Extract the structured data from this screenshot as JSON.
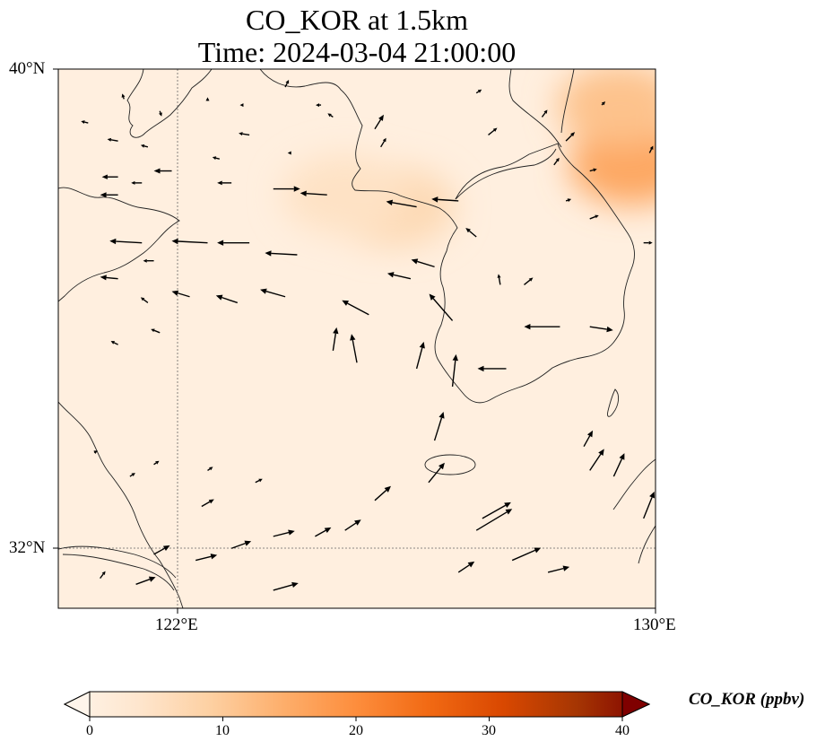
{
  "title_line1": "CO_KOR at 1.5km",
  "title_line2": "Time: 2024-03-04 21:00:00",
  "axes": {
    "lat_ticks": [
      {
        "label": "40°N",
        "value": 40
      },
      {
        "label": "32°N",
        "value": 32
      }
    ],
    "lon_ticks": [
      {
        "label": "122°E",
        "value": 122
      },
      {
        "label": "130°E",
        "value": 130
      }
    ],
    "lon_range": [
      120,
      130
    ],
    "lat_range": [
      31,
      40
    ],
    "gridlines": "dotted at 122°E and 32°N"
  },
  "colorbar": {
    "label": "CO_KOR (ppbv)",
    "min": 0,
    "max": 40,
    "extend": "both",
    "colormap": [
      "#fff5eb",
      "#fee6ce",
      "#fdd0a2",
      "#fdae6b",
      "#fd8d3c",
      "#f16913",
      "#d94801",
      "#a63603",
      "#7f0000"
    ],
    "ticks": [
      {
        "label": "0",
        "value": 0
      },
      {
        "label": "10",
        "value": 10
      },
      {
        "label": "20",
        "value": 20
      },
      {
        "label": "30",
        "value": 30
      },
      {
        "label": "40",
        "value": 40
      }
    ]
  },
  "field": {
    "background_ppbv": 2,
    "hotspots": [
      {
        "lon": 125.6,
        "lat": 37.7,
        "ppbv": 8
      },
      {
        "lon": 129.6,
        "lat": 38.4,
        "ppbv": 16
      },
      {
        "lon": 129.4,
        "lat": 39.4,
        "ppbv": 12
      },
      {
        "lon": 124.8,
        "lat": 37.9,
        "ppbv": 6
      }
    ]
  },
  "wind_vectors": [
    {
      "lon": 121.4,
      "lat": 37.1,
      "u": -1.8,
      "v": 0.1
    },
    {
      "lon": 122.5,
      "lat": 37.1,
      "u": -2.0,
      "v": 0.1
    },
    {
      "lon": 123.2,
      "lat": 37.1,
      "u": -1.8,
      "v": 0.0
    },
    {
      "lon": 124.0,
      "lat": 36.9,
      "u": -1.8,
      "v": 0.1
    },
    {
      "lon": 122.2,
      "lat": 36.2,
      "u": -1.0,
      "v": 0.3
    },
    {
      "lon": 123.0,
      "lat": 36.1,
      "u": -1.2,
      "v": 0.4
    },
    {
      "lon": 123.8,
      "lat": 36.2,
      "u": -1.4,
      "v": 0.4
    },
    {
      "lon": 125.2,
      "lat": 35.9,
      "u": -1.5,
      "v": 0.8
    },
    {
      "lon": 126.6,
      "lat": 35.8,
      "u": -1.3,
      "v": 1.5
    },
    {
      "lon": 124.6,
      "lat": 35.3,
      "u": 0.2,
      "v": 1.3
    },
    {
      "lon": 125.0,
      "lat": 35.1,
      "u": -0.3,
      "v": 1.6
    },
    {
      "lon": 126.0,
      "lat": 35.0,
      "u": 0.4,
      "v": 1.5
    },
    {
      "lon": 126.3,
      "lat": 36.7,
      "u": -1.3,
      "v": 0.4
    },
    {
      "lon": 126.0,
      "lat": 37.7,
      "u": -1.7,
      "v": 0.3
    },
    {
      "lon": 126.7,
      "lat": 37.8,
      "u": -1.5,
      "v": 0.1
    },
    {
      "lon": 124.5,
      "lat": 37.9,
      "u": -1.5,
      "v": 0.1
    },
    {
      "lon": 125.9,
      "lat": 36.5,
      "u": -1.3,
      "v": 0.3
    },
    {
      "lon": 127.4,
      "lat": 36.4,
      "u": -0.1,
      "v": 0.6
    },
    {
      "lon": 127.8,
      "lat": 36.4,
      "u": 0.5,
      "v": 0.4
    },
    {
      "lon": 128.4,
      "lat": 35.7,
      "u": -2.0,
      "v": 0.0
    },
    {
      "lon": 128.9,
      "lat": 35.7,
      "u": 1.3,
      "v": -0.2
    },
    {
      "lon": 127.5,
      "lat": 35.0,
      "u": -1.6,
      "v": 0.0
    },
    {
      "lon": 126.6,
      "lat": 34.7,
      "u": 0.2,
      "v": 1.8
    },
    {
      "lon": 126.3,
      "lat": 33.8,
      "u": 0.5,
      "v": 1.6
    },
    {
      "lon": 126.2,
      "lat": 33.1,
      "u": 0.9,
      "v": 1.1
    },
    {
      "lon": 125.3,
      "lat": 32.8,
      "u": 0.9,
      "v": 0.8
    },
    {
      "lon": 124.8,
      "lat": 32.3,
      "u": 0.9,
      "v": 0.6
    },
    {
      "lon": 124.3,
      "lat": 32.2,
      "u": 0.9,
      "v": 0.5
    },
    {
      "lon": 123.6,
      "lat": 32.2,
      "u": 1.2,
      "v": 0.3
    },
    {
      "lon": 122.9,
      "lat": 32.0,
      "u": 1.1,
      "v": 0.4
    },
    {
      "lon": 122.3,
      "lat": 31.8,
      "u": 1.2,
      "v": 0.3
    },
    {
      "lon": 121.6,
      "lat": 31.9,
      "u": 0.9,
      "v": 0.5
    },
    {
      "lon": 121.3,
      "lat": 31.4,
      "u": 1.1,
      "v": 0.4
    },
    {
      "lon": 123.6,
      "lat": 31.3,
      "u": 1.4,
      "v": 0.4
    },
    {
      "lon": 122.4,
      "lat": 32.7,
      "u": 0.7,
      "v": 0.4
    },
    {
      "lon": 121.2,
      "lat": 33.2,
      "u": 0.3,
      "v": 0.2
    },
    {
      "lon": 121.6,
      "lat": 33.4,
      "u": 0.3,
      "v": 0.2
    },
    {
      "lon": 122.5,
      "lat": 33.3,
      "u": 0.3,
      "v": 0.2
    },
    {
      "lon": 123.3,
      "lat": 33.1,
      "u": 0.4,
      "v": 0.2
    },
    {
      "lon": 127.0,
      "lat": 32.3,
      "u": 2.0,
      "v": 1.2
    },
    {
      "lon": 127.6,
      "lat": 31.8,
      "u": 1.6,
      "v": 0.7
    },
    {
      "lon": 127.1,
      "lat": 32.5,
      "u": 1.6,
      "v": 0.9
    },
    {
      "lon": 126.7,
      "lat": 31.6,
      "u": 0.9,
      "v": 0.6
    },
    {
      "lon": 128.9,
      "lat": 33.3,
      "u": 0.8,
      "v": 1.2
    },
    {
      "lon": 129.3,
      "lat": 33.2,
      "u": 0.6,
      "v": 1.3
    },
    {
      "lon": 128.8,
      "lat": 33.7,
      "u": 0.5,
      "v": 0.9
    },
    {
      "lon": 129.8,
      "lat": 32.5,
      "u": 0.6,
      "v": 1.5
    },
    {
      "lon": 128.2,
      "lat": 31.6,
      "u": 1.2,
      "v": 0.3
    },
    {
      "lon": 120.7,
      "lat": 31.5,
      "u": 0.3,
      "v": 0.4
    },
    {
      "lon": 120.6,
      "lat": 33.6,
      "u": 0.2,
      "v": 0.1
    },
    {
      "lon": 121.0,
      "lat": 35.4,
      "u": -0.4,
      "v": 0.2
    },
    {
      "lon": 121.5,
      "lat": 36.1,
      "u": -0.4,
      "v": 0.3
    },
    {
      "lon": 121.7,
      "lat": 35.6,
      "u": -0.5,
      "v": 0.2
    },
    {
      "lon": 121.0,
      "lat": 36.5,
      "u": -1.0,
      "v": 0.1
    },
    {
      "lon": 121.6,
      "lat": 36.8,
      "u": -0.6,
      "v": 0.0
    },
    {
      "lon": 121.0,
      "lat": 37.9,
      "u": -1.0,
      "v": 0.0
    },
    {
      "lon": 121.0,
      "lat": 38.2,
      "u": -0.9,
      "v": 0.0
    },
    {
      "lon": 121.4,
      "lat": 38.1,
      "u": -0.6,
      "v": 0.0
    },
    {
      "lon": 121.9,
      "lat": 38.3,
      "u": -1.0,
      "v": 0.0
    },
    {
      "lon": 122.9,
      "lat": 38.1,
      "u": -0.8,
      "v": 0.0
    },
    {
      "lon": 122.7,
      "lat": 38.5,
      "u": -0.4,
      "v": 0.1
    },
    {
      "lon": 123.2,
      "lat": 38.9,
      "u": -0.6,
      "v": 0.1
    },
    {
      "lon": 121.0,
      "lat": 38.8,
      "u": -0.6,
      "v": 0.1
    },
    {
      "lon": 120.5,
      "lat": 39.1,
      "u": -0.4,
      "v": 0.1
    },
    {
      "lon": 121.5,
      "lat": 38.7,
      "u": -0.4,
      "v": 0.1
    },
    {
      "lon": 123.1,
      "lat": 39.4,
      "u": -0.2,
      "v": 0.0
    },
    {
      "lon": 124.6,
      "lat": 39.2,
      "u": -0.3,
      "v": 0.2
    },
    {
      "lon": 124.4,
      "lat": 39.4,
      "u": -0.3,
      "v": 0.0
    },
    {
      "lon": 125.3,
      "lat": 39.0,
      "u": 0.5,
      "v": 0.8
    },
    {
      "lon": 125.4,
      "lat": 38.7,
      "u": 0.3,
      "v": 0.5
    },
    {
      "lon": 123.6,
      "lat": 38.0,
      "u": 1.5,
      "v": 0.0
    },
    {
      "lon": 123.9,
      "lat": 38.6,
      "u": -0.2,
      "v": 0.0
    },
    {
      "lon": 127.2,
      "lat": 38.9,
      "u": 0.5,
      "v": 0.4
    },
    {
      "lon": 128.5,
      "lat": 38.8,
      "u": 0.5,
      "v": 0.5
    },
    {
      "lon": 128.9,
      "lat": 38.3,
      "u": 0.4,
      "v": 0.1
    },
    {
      "lon": 128.9,
      "lat": 37.5,
      "u": 0.5,
      "v": 0.2
    },
    {
      "lon": 128.5,
      "lat": 37.8,
      "u": 0.3,
      "v": 0.1
    },
    {
      "lon": 129.8,
      "lat": 37.1,
      "u": 0.5,
      "v": 0.0
    },
    {
      "lon": 129.9,
      "lat": 38.6,
      "u": 0.2,
      "v": 0.4
    },
    {
      "lon": 128.3,
      "lat": 38.4,
      "u": 0.3,
      "v": 0.4
    },
    {
      "lon": 121.1,
      "lat": 39.5,
      "u": -0.1,
      "v": 0.3
    },
    {
      "lon": 121.7,
      "lat": 39.3,
      "u": 0.1,
      "v": -0.3
    },
    {
      "lon": 122.5,
      "lat": 39.5,
      "u": 0.0,
      "v": 0.1
    },
    {
      "lon": 123.8,
      "lat": 39.7,
      "u": 0.2,
      "v": 0.4
    },
    {
      "lon": 127.0,
      "lat": 39.6,
      "u": 0.3,
      "v": 0.2
    },
    {
      "lon": 128.1,
      "lat": 39.2,
      "u": 0.3,
      "v": 0.4
    },
    {
      "lon": 129.1,
      "lat": 39.4,
      "u": 0.2,
      "v": 0.2
    },
    {
      "lon": 127.0,
      "lat": 37.2,
      "u": -0.6,
      "v": 0.5
    }
  ]
}
